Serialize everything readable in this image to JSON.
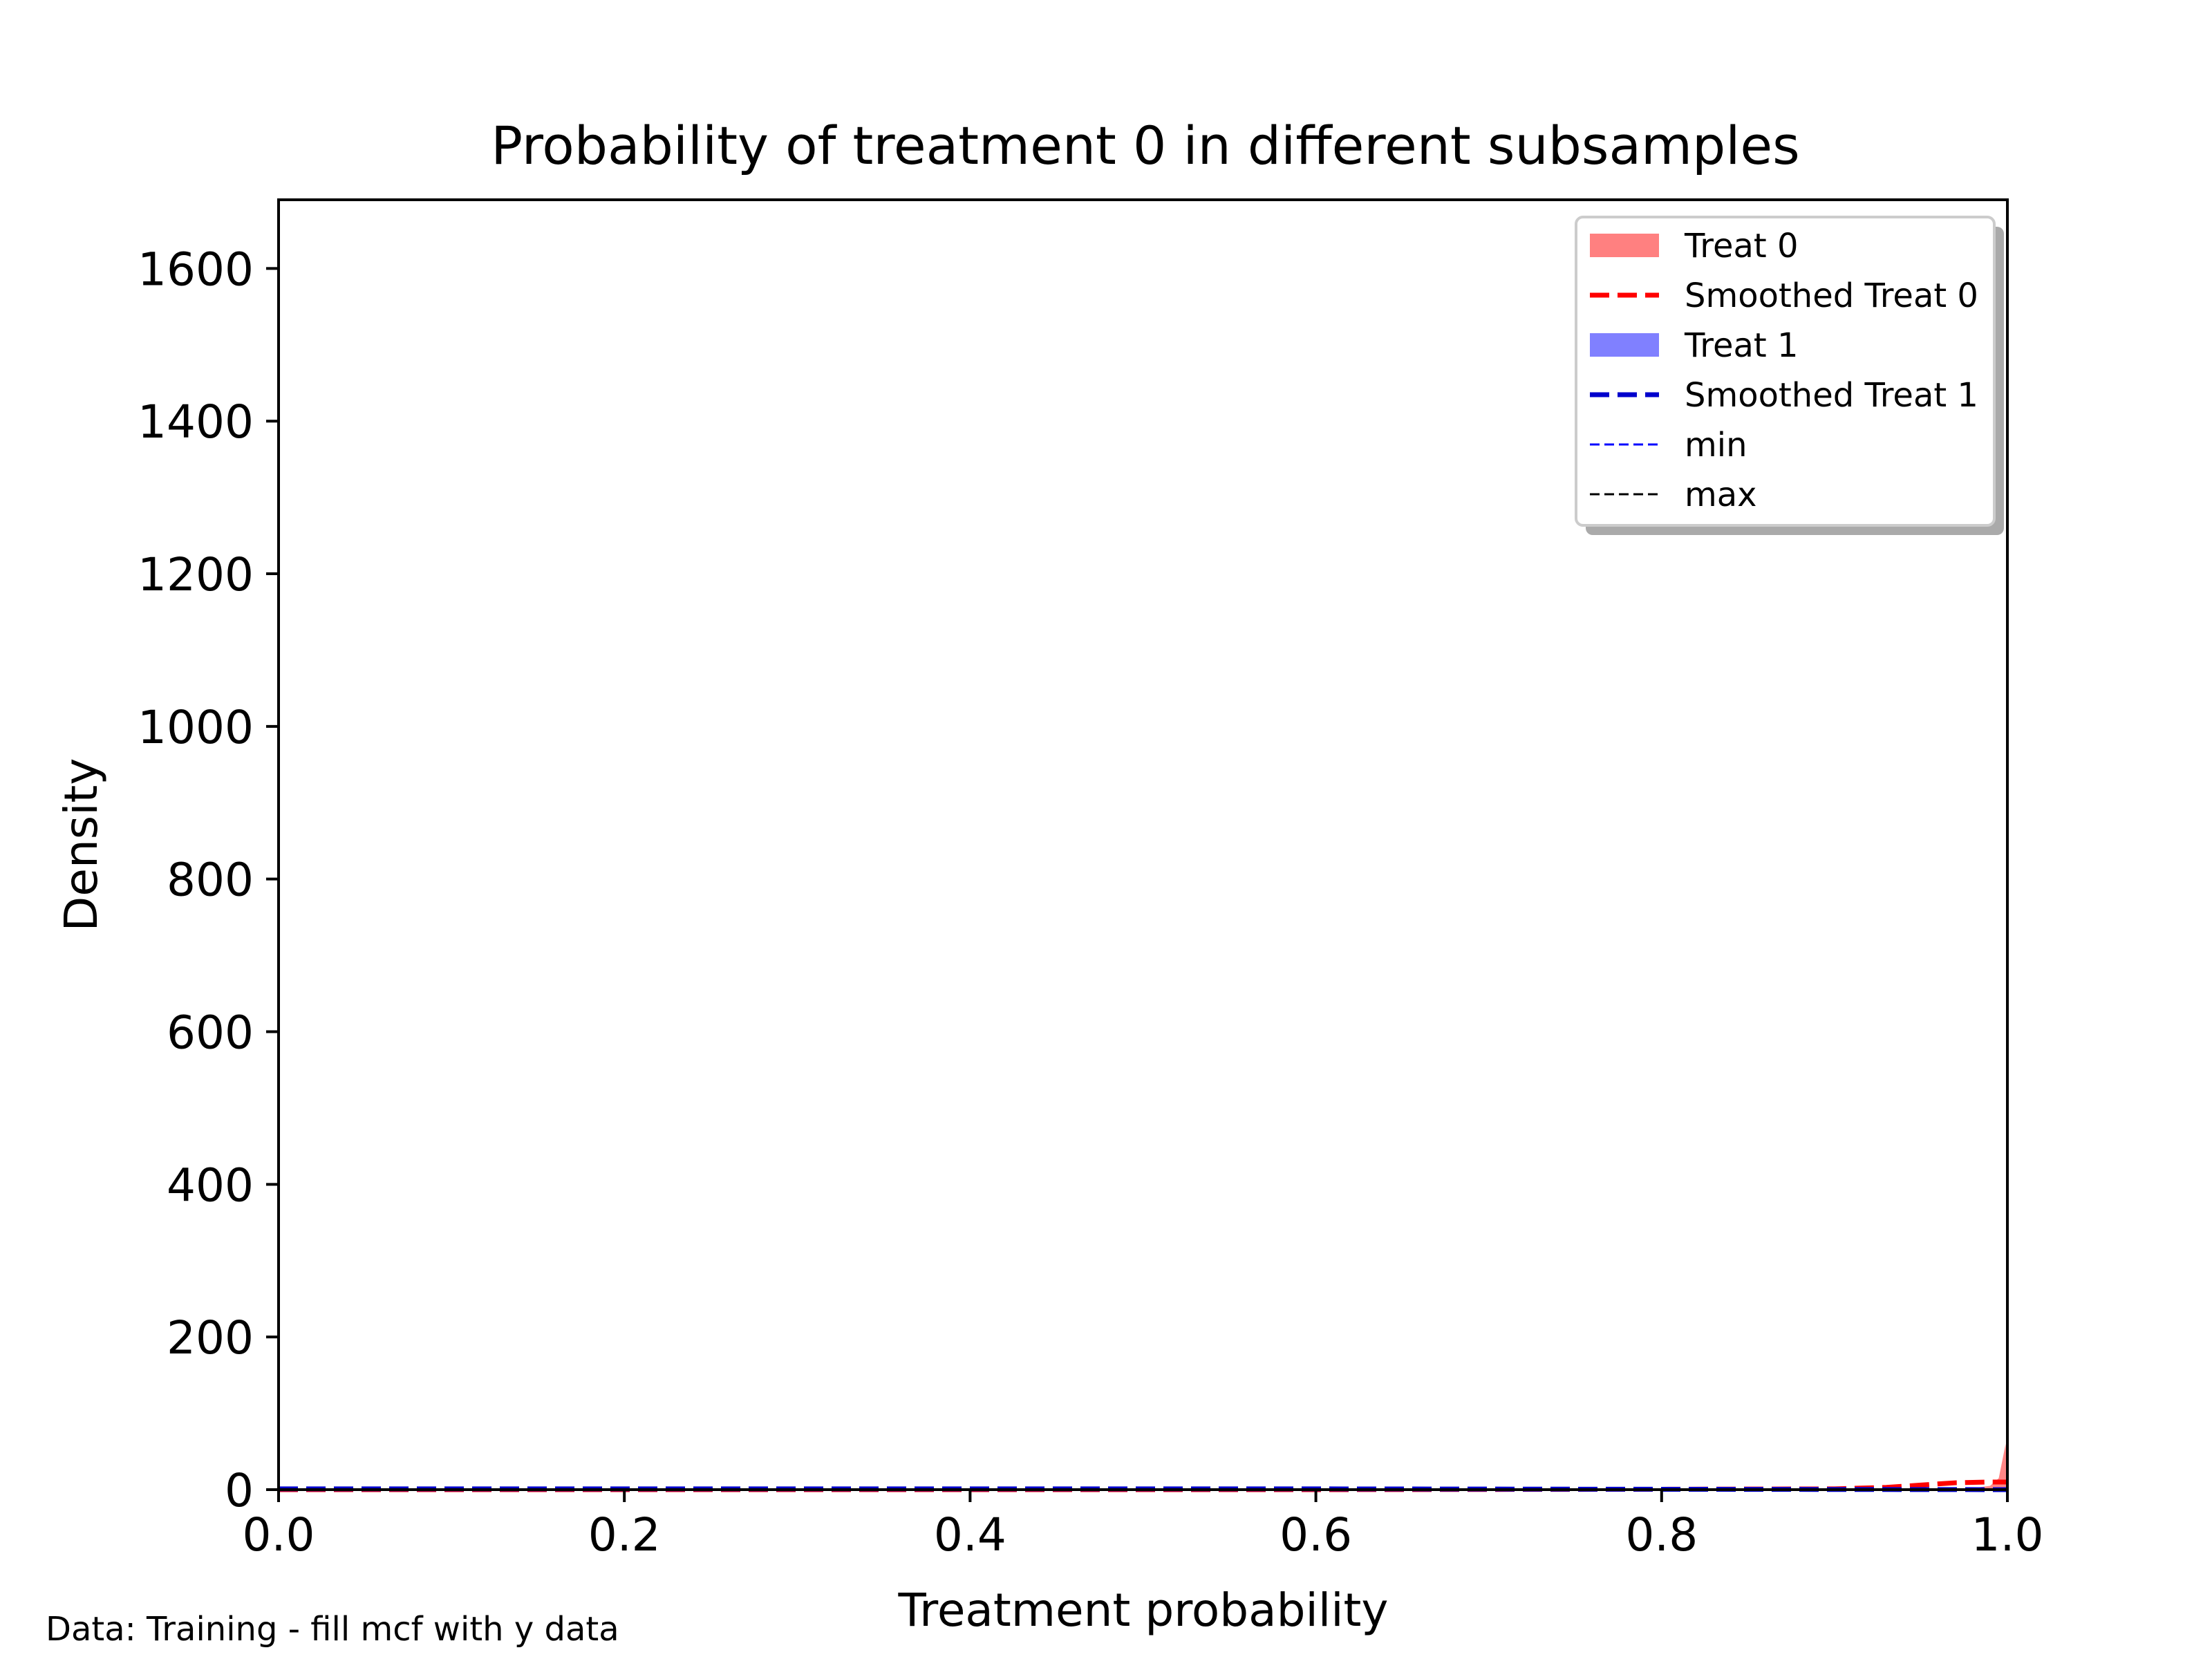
{
  "chart_data": {
    "type": "area",
    "title": "Probability of treatment 0 in different subsamples",
    "xlabel": "Treatment probability",
    "ylabel": "Density",
    "xlim": [
      0.0,
      1.0
    ],
    "ylim": [
      0,
      1690
    ],
    "x_ticks": [
      0.0,
      0.2,
      0.4,
      0.6,
      0.8,
      1.0
    ],
    "x_tick_labels": [
      "0.0",
      "0.2",
      "0.4",
      "0.6",
      "0.8",
      "1.0"
    ],
    "y_ticks": [
      0,
      200,
      400,
      600,
      800,
      1000,
      1200,
      1400,
      1600
    ],
    "y_tick_labels": [
      "0",
      "200",
      "400",
      "600",
      "800",
      "1000",
      "1200",
      "1400",
      "1600"
    ],
    "grid": false,
    "legend_position": "top-right",
    "series": [
      {
        "name": "Treat 0",
        "kind": "histogram",
        "color": "#ff8080",
        "x": [
          0.97,
          0.98,
          0.99,
          0.995,
          0.999,
          1.0
        ],
        "y": [
          0,
          2,
          5,
          15,
          60,
          0
        ]
      },
      {
        "name": "Smoothed Treat 0",
        "kind": "line",
        "style": "dashed",
        "color": "#ff0000",
        "x": [
          0.0,
          0.2,
          0.4,
          0.6,
          0.8,
          0.9,
          0.93,
          0.95,
          0.97,
          0.99,
          1.0
        ],
        "y": [
          0,
          0,
          0,
          0,
          0.5,
          1,
          3,
          6,
          9,
          10,
          10
        ]
      },
      {
        "name": "Treat 1",
        "kind": "histogram",
        "color": "#8080ff",
        "x": [
          0.0,
          1.0
        ],
        "y": [
          0,
          0
        ]
      },
      {
        "name": "Smoothed Treat 1",
        "kind": "line",
        "style": "dashed",
        "color": "#0000cc",
        "x": [
          0.0,
          0.2,
          0.4,
          0.6,
          0.8,
          1.0
        ],
        "y": [
          1,
          1,
          1,
          1,
          0.5,
          0
        ]
      },
      {
        "name": "min",
        "kind": "vline",
        "style": "dashed",
        "color": "#0000ff",
        "x": 1.0
      },
      {
        "name": "max",
        "kind": "vline",
        "style": "dashed",
        "color": "#000000",
        "x": 1.0
      }
    ],
    "legend": [
      {
        "label": "Treat 0",
        "kind": "patch",
        "color": "#ff8080"
      },
      {
        "label": "Smoothed Treat 0",
        "kind": "dash-thick",
        "color": "#ff0000"
      },
      {
        "label": "Treat 1",
        "kind": "patch",
        "color": "#8080ff"
      },
      {
        "label": "Smoothed Treat 1",
        "kind": "dash-thick",
        "color": "#0000cc"
      },
      {
        "label": "min",
        "kind": "dash-thin",
        "color": "#0000ff"
      },
      {
        "label": "max",
        "kind": "dash-thin",
        "color": "#000000"
      }
    ],
    "footnote": "Data: Training - fill mcf with y data"
  }
}
